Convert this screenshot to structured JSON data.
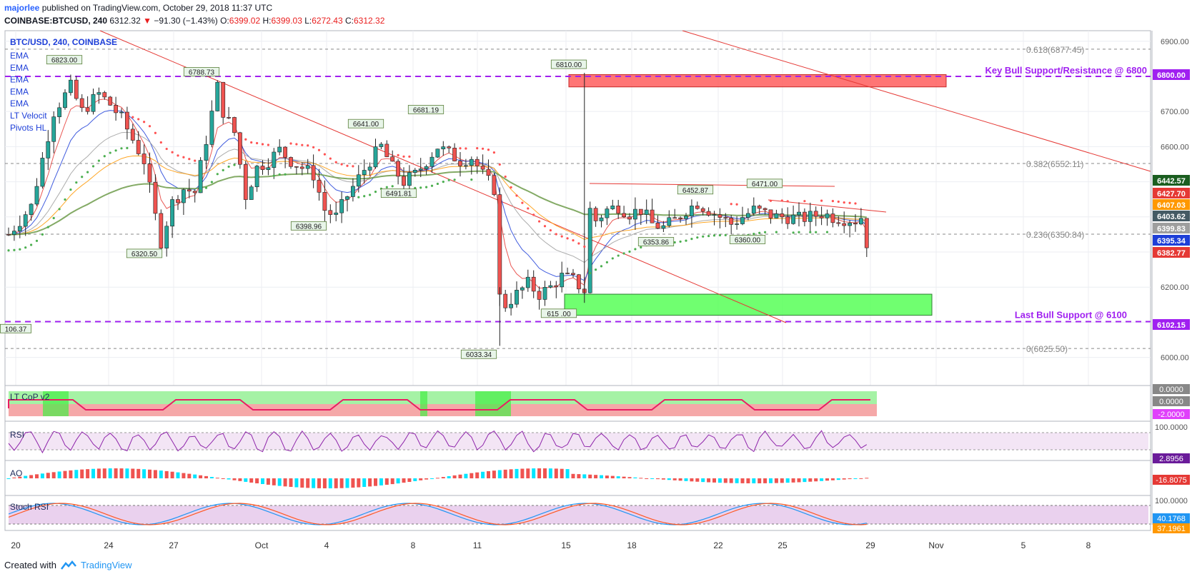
{
  "header": {
    "username": "majorlee",
    "published": " published on TradingView.com, October 29, 2018 11:37 UTC",
    "symbol": "COINBASE:BTCUSD, 240",
    "last": "6312.32",
    "change_arrow": "▼",
    "change": "−91.30 (−1.43%)",
    "o_label": "O:",
    "o": "6399.02",
    "h_label": "H:",
    "h": "6399.03",
    "l_label": "L:",
    "l": "6272.43",
    "c_label": "C:",
    "c": "6312.32"
  },
  "legend": {
    "title": "BTC/USD, 240, COINBASE",
    "items": [
      "EMA",
      "EMA",
      "EMA",
      "EMA",
      "EMA",
      "LT Velocit",
      "Pivots HL"
    ]
  },
  "footer": {
    "created": "Created with",
    "brand": "TradingView"
  },
  "colors": {
    "up": "#26a69a",
    "down": "#ef5350",
    "purple_line": "#a020f0",
    "red_zone": "#ff5252",
    "green_zone": "#4cff4c",
    "rsi": "#8e24aa",
    "stoch_k": "#2196f3",
    "stoch_d": "#ff5722"
  },
  "chart_data": {
    "type": "candlestick",
    "title": "BTC/USD, 240, COINBASE",
    "ylim": [
      5920,
      6930
    ],
    "y_ticks": [
      "6900.00",
      "6800.00",
      "6700.00",
      "6600.00",
      "6500.00",
      "6400.00",
      "6300.00",
      "6200.00",
      "6100.00",
      "6000.00"
    ],
    "x_tick_labels": [
      "20",
      "24",
      "27",
      "Oct",
      "4",
      "8",
      "11",
      "15",
      "18",
      "22",
      "25",
      "29",
      "Nov",
      "5",
      "8"
    ],
    "price_tags": [
      {
        "label": "6800.00",
        "value": 6800,
        "color": "#a020f0"
      },
      {
        "label": "6442.57",
        "value": 6442.57,
        "color": "#1b5e20"
      },
      {
        "label": "6427.70",
        "value": 6427.7,
        "color": "#e53935"
      },
      {
        "label": "6407.03",
        "value": 6407.03,
        "color": "#ff9800"
      },
      {
        "label": "6403.62",
        "value": 6403.62,
        "color": "#455a64"
      },
      {
        "label": "6399.83",
        "value": 6399.83,
        "color": "#9e9e9e"
      },
      {
        "label": "6395.34",
        "value": 6395.34,
        "color": "#1e3fd8"
      },
      {
        "label": "6382.77",
        "value": 6382.77,
        "color": "#e53935"
      },
      {
        "label": "6102.15",
        "value": 6102.15,
        "color": "#a020f0"
      }
    ],
    "fib_levels": [
      {
        "label": "0.618(6877.45)",
        "value": 6877.45
      },
      {
        "label": "0.382(6552.11)",
        "value": 6552.11
      },
      {
        "label": "0.236(6350.84)",
        "value": 6350.84
      },
      {
        "label": "0(6025.50)",
        "value": 6025.5
      }
    ],
    "horizontal_lines": [
      {
        "label": "Key Bull Support/Resistance @ 6800",
        "value": 6800
      },
      {
        "label": "Last Bull Support @ 6100",
        "value": 6102
      }
    ],
    "zones": [
      {
        "name": "resistance",
        "from": 6770,
        "to": 6805
      },
      {
        "name": "support",
        "from": 6120,
        "to": 6180
      }
    ],
    "pivot_labels": [
      {
        "label": "6823.00",
        "value": 6823
      },
      {
        "label": "6788.73",
        "value": 6788.73
      },
      {
        "label": "6320.50",
        "value": 6320.5
      },
      {
        "label": "6398.96",
        "value": 6398.96
      },
      {
        "label": "6641.00",
        "value": 6641
      },
      {
        "label": "6491.81",
        "value": 6491.81
      },
      {
        "label": "6681.19",
        "value": 6681.19
      },
      {
        "label": "6033.34",
        "value": 6033.34
      },
      {
        "label": "6810.00",
        "value": 6810
      },
      {
        "label": "615 .00",
        "value": 6150
      },
      {
        "label": "6353.86",
        "value": 6353.86
      },
      {
        "label": "6452.87",
        "value": 6452.87
      },
      {
        "label": "6360.00",
        "value": 6360
      },
      {
        "label": "6471.00",
        "value": 6471
      },
      {
        "label": "106.37",
        "value": 6106.37
      }
    ],
    "price_path": [
      [
        0,
        6350
      ],
      [
        4,
        6430
      ],
      [
        8,
        6700
      ],
      [
        11,
        6770
      ],
      [
        13,
        6700
      ],
      [
        16,
        6750
      ],
      [
        18,
        6720
      ],
      [
        20,
        6680
      ],
      [
        22,
        6620
      ],
      [
        24,
        6560
      ],
      [
        26,
        6400
      ],
      [
        27,
        6330
      ],
      [
        29,
        6440
      ],
      [
        31,
        6480
      ],
      [
        33,
        6470
      ],
      [
        35,
        6620
      ],
      [
        37,
        6770
      ],
      [
        38,
        6700
      ],
      [
        40,
        6640
      ],
      [
        42,
        6460
      ],
      [
        44,
        6540
      ],
      [
        46,
        6560
      ],
      [
        48,
        6590
      ],
      [
        50,
        6560
      ],
      [
        52,
        6540
      ],
      [
        54,
        6520
      ],
      [
        56,
        6420
      ],
      [
        58,
        6400
      ],
      [
        60,
        6460
      ],
      [
        62,
        6510
      ],
      [
        64,
        6560
      ],
      [
        66,
        6600
      ],
      [
        68,
        6540
      ],
      [
        70,
        6500
      ],
      [
        72,
        6520
      ],
      [
        74,
        6560
      ],
      [
        76,
        6600
      ],
      [
        78,
        6580
      ],
      [
        80,
        6560
      ],
      [
        82,
        6570
      ],
      [
        84,
        6520
      ],
      [
        86,
        6480
      ],
      [
        87,
        6200
      ],
      [
        88,
        6150
      ],
      [
        90,
        6180
      ],
      [
        92,
        6210
      ],
      [
        94,
        6180
      ],
      [
        96,
        6200
      ],
      [
        98,
        6230
      ],
      [
        100,
        6220
      ],
      [
        102,
        6190
      ],
      [
        103,
        6420
      ],
      [
        104,
        6390
      ],
      [
        106,
        6420
      ],
      [
        108,
        6430
      ],
      [
        110,
        6410
      ],
      [
        112,
        6420
      ],
      [
        114,
        6380
      ],
      [
        116,
        6370
      ],
      [
        118,
        6390
      ],
      [
        120,
        6420
      ],
      [
        122,
        6440
      ],
      [
        124,
        6420
      ],
      [
        126,
        6400
      ],
      [
        128,
        6380
      ],
      [
        130,
        6400
      ],
      [
        132,
        6420
      ],
      [
        134,
        6410
      ],
      [
        136,
        6400
      ],
      [
        138,
        6400
      ],
      [
        140,
        6395
      ],
      [
        142,
        6400
      ],
      [
        144,
        6410
      ],
      [
        146,
        6400
      ],
      [
        148,
        6395
      ],
      [
        150,
        6390
      ],
      [
        151,
        6400
      ],
      [
        152,
        6312
      ]
    ],
    "series": [
      {
        "name": "LT CoP v2",
        "last_values": [
          "0.0000",
          "0.0000",
          "-2.0000"
        ]
      },
      {
        "name": "RSI",
        "last_values": [
          "100.0000",
          "2.8956"
        ]
      },
      {
        "name": "AO",
        "last_values": [
          "-16.8075"
        ]
      },
      {
        "name": "Stoch RSI",
        "last_values": [
          "100.0000",
          "40.1768",
          "37.1961"
        ]
      }
    ]
  }
}
